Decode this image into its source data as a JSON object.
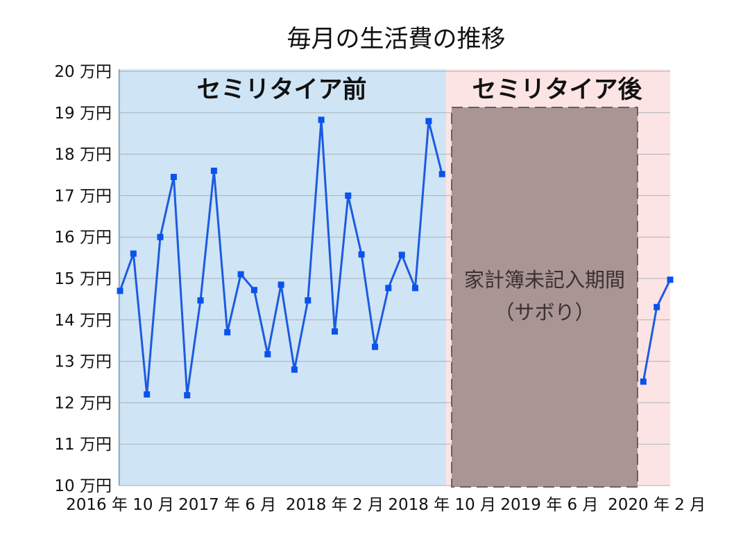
{
  "chart_data": {
    "type": "line",
    "title": "毎月の生活費の推移",
    "xlabel": "",
    "ylabel": "",
    "ylim": [
      10,
      20
    ],
    "x_range": [
      0,
      41
    ],
    "grid": true,
    "y_ticks": [
      {
        "value": 10,
        "label": "10 万円"
      },
      {
        "value": 11,
        "label": "11 万円"
      },
      {
        "value": 12,
        "label": "12 万円"
      },
      {
        "value": 13,
        "label": "13 万円"
      },
      {
        "value": 14,
        "label": "14 万円"
      },
      {
        "value": 15,
        "label": "15 万円"
      },
      {
        "value": 16,
        "label": "16 万円"
      },
      {
        "value": 17,
        "label": "17 万円"
      },
      {
        "value": 18,
        "label": "18 万円"
      },
      {
        "value": 19,
        "label": "19 万円"
      },
      {
        "value": 20,
        "label": "20 万円"
      }
    ],
    "x_ticks": [
      {
        "index": 0,
        "label": "2016 年 10 月"
      },
      {
        "index": 8,
        "label": "2017 年 6 月"
      },
      {
        "index": 16,
        "label": "2018 年 2 月"
      },
      {
        "index": 24,
        "label": "2018 年 10 月"
      },
      {
        "index": 32,
        "label": "2019 年 6 月"
      },
      {
        "index": 40,
        "label": "2020 年 2 月"
      }
    ],
    "series": [
      {
        "color": "#1b5be0",
        "marker_color": "#0a52ee",
        "values": [
          14.7,
          15.6,
          12.2,
          16.0,
          17.45,
          12.18,
          14.47,
          17.6,
          13.7,
          15.1,
          14.72,
          13.17,
          14.85,
          12.8,
          14.47,
          18.83,
          13.72,
          17.0,
          15.58,
          13.35,
          14.77,
          15.57,
          14.77,
          18.8,
          17.52,
          null,
          null,
          null,
          null,
          null,
          null,
          null,
          null,
          null,
          null,
          null,
          null,
          null,
          null,
          12.51,
          14.31,
          14.97
        ]
      }
    ],
    "regions": [
      {
        "label": "セミリタイア前",
        "color": "#cfe4f4"
      },
      {
        "label": "セミリタイア後",
        "color": "#fde4e4"
      }
    ],
    "annotation": {
      "lines": [
        "家計簿未記入期間",
        "（サボり）"
      ],
      "color": "#a89594",
      "border_color": "#4a4040"
    },
    "grid_color": "#a9b1ba",
    "axis_color": "#9a9a9a"
  }
}
